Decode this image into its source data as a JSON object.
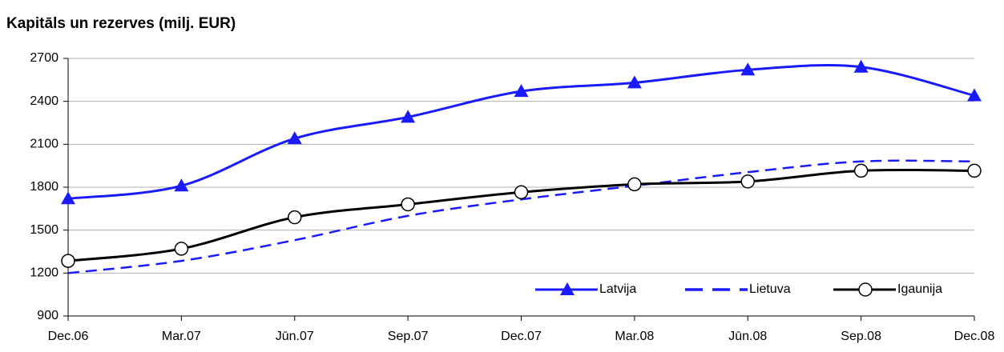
{
  "chart_data": {
    "type": "line",
    "title": "Kapitāls un rezerves (milj. EUR)",
    "categories": [
      "Dec.06",
      "Mar.07",
      "Jūn.07",
      "Sep.07",
      "Dec.07",
      "Mar.08",
      "Jūn.08",
      "Sep.08",
      "Dec.08"
    ],
    "series": [
      {
        "name": "Latvija",
        "color": "#1a1aff",
        "marker": "triangle",
        "dash": "solid",
        "values": [
          1720,
          1810,
          2140,
          2290,
          2470,
          2530,
          2620,
          2640,
          2440
        ]
      },
      {
        "name": "Lietuva",
        "color": "#1a1aff",
        "marker": "none",
        "dash": "dashed",
        "values": [
          1200,
          1285,
          1430,
          1600,
          1715,
          1810,
          1905,
          1980,
          1980
        ]
      },
      {
        "name": "Igaunija",
        "color": "#000000",
        "marker": "circle",
        "dash": "solid",
        "values": [
          1285,
          1370,
          1590,
          1680,
          1765,
          1820,
          1840,
          1915,
          1915
        ]
      }
    ],
    "ylim": [
      900,
      2700
    ],
    "yticks": [
      900,
      1200,
      1500,
      1800,
      2100,
      2400,
      2700
    ],
    "grid": true,
    "legend": "lower right"
  }
}
